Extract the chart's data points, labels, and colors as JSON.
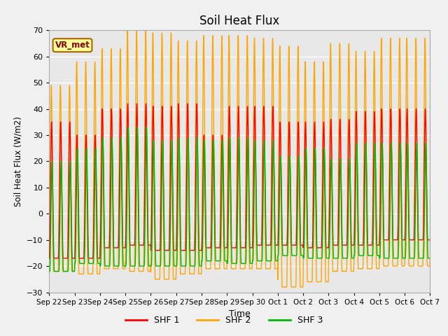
{
  "title": "Soil Heat Flux",
  "ylabel": "Soil Heat Flux (W/m2)",
  "xlabel": "Time",
  "ylim": [
    -30,
    70
  ],
  "yticks": [
    -30,
    -20,
    -10,
    0,
    10,
    20,
    30,
    40,
    50,
    60,
    70
  ],
  "background_color": "#e8e8e8",
  "fig_background": "#f0f0f0",
  "label_text": "VR_met",
  "series": [
    "SHF 1",
    "SHF 2",
    "SHF 3"
  ],
  "colors": [
    "#ff0000",
    "#ffa500",
    "#00bb00"
  ],
  "peaks_shf1": [
    35,
    30,
    40,
    42,
    41,
    42,
    30,
    41,
    41,
    35,
    35,
    36,
    39,
    40,
    40
  ],
  "peaks_shf2": [
    49,
    58,
    63,
    70,
    69,
    66,
    68,
    68,
    67,
    64,
    58,
    65,
    62,
    67,
    67
  ],
  "peaks_shf3": [
    20,
    25,
    29,
    33,
    28,
    29,
    28,
    29,
    28,
    22,
    25,
    21,
    27,
    27,
    27
  ],
  "troughs_shf1": [
    -17,
    -17,
    -13,
    -12,
    -14,
    -14,
    -13,
    -13,
    -12,
    -12,
    -13,
    -12,
    -12,
    -10,
    -10
  ],
  "troughs_shf2": [
    -22,
    -23,
    -21,
    -22,
    -25,
    -23,
    -21,
    -21,
    -21,
    -28,
    -26,
    -22,
    -21,
    -20,
    -20
  ],
  "troughs_shf3": [
    -22,
    -19,
    -20,
    -20,
    -20,
    -20,
    -18,
    -19,
    -18,
    -16,
    -17,
    -17,
    -16,
    -17,
    -17
  ],
  "x_tick_labels": [
    "Sep 22",
    "Sep 23",
    "Sep 24",
    "Sep 25",
    "Sep 26",
    "Sep 27",
    "Sep 28",
    "Sep 29",
    "Sep 30",
    "Oct 1",
    "Oct 2",
    "Oct 3",
    "Oct 4",
    "Oct 5",
    "Oct 6",
    "Oct 7"
  ],
  "line_width": 1.0
}
